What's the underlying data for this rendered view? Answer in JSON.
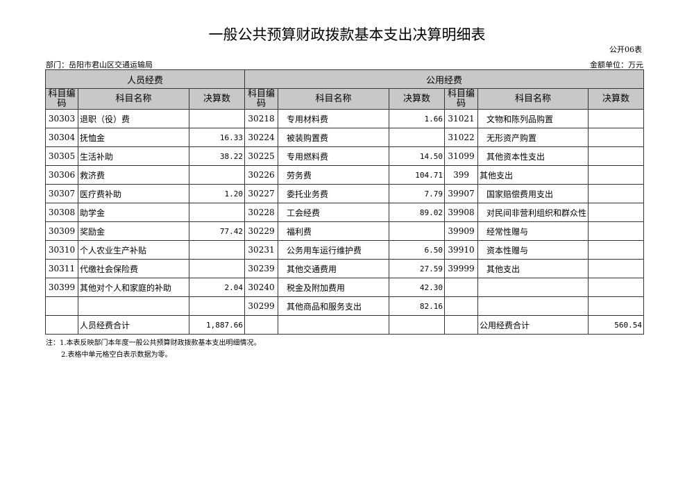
{
  "title": "一般公共预算财政拨款基本支出决算明细表",
  "form_no": "公开06表",
  "department": "部门：岳阳市君山区交通运输局",
  "unit": "金额单位：万元",
  "headers": {
    "personnel": "人员经费",
    "public": "公用经费",
    "code": "科目编码",
    "name": "科目名称",
    "amount": "决算数"
  },
  "rows": [
    [
      "30303",
      "退职（役）费",
      "",
      "30218",
      "专用材料费",
      "1.66",
      "31021",
      "文物和陈列品购置",
      ""
    ],
    [
      "30304",
      "抚恤金",
      "16.33",
      "30224",
      "被装购置费",
      "",
      "31022",
      "无形资产购置",
      ""
    ],
    [
      "30305",
      "生活补助",
      "38.22",
      "30225",
      "专用燃料费",
      "14.50",
      "31099",
      "其他资本性支出",
      ""
    ],
    [
      "30306",
      "救济费",
      "",
      "30226",
      "劳务费",
      "104.71",
      "399",
      "其他支出",
      ""
    ],
    [
      "30307",
      "医疗费补助",
      "1.20",
      "30227",
      "委托业务费",
      "7.79",
      "39907",
      "国家赔偿费用支出",
      ""
    ],
    [
      "30308",
      "助学金",
      "",
      "30228",
      "工会经费",
      "89.02",
      "39908",
      "对民间非营利组织和群众性自",
      ""
    ],
    [
      "30309",
      "奖励金",
      "77.42",
      "30229",
      "福利费",
      "",
      "39909",
      "经常性赠与",
      ""
    ],
    [
      "30310",
      "个人农业生产补贴",
      "",
      "30231",
      "公务用车运行维护费",
      "6.50",
      "39910",
      "资本性赠与",
      ""
    ],
    [
      "30311",
      "代缴社会保险费",
      "",
      "30239",
      "其他交通费用",
      "27.59",
      "39999",
      "其他支出",
      ""
    ],
    [
      "30399",
      "其他对个人和家庭的补助",
      "2.04",
      "30240",
      "税金及附加费用",
      "42.30",
      "",
      "",
      ""
    ],
    [
      "",
      "",
      "",
      "30299",
      "其他商品和服务支出",
      "82.16",
      "",
      "",
      ""
    ]
  ],
  "totals": {
    "personnel_label": "人员经费合计",
    "personnel_value": "1,887.66",
    "public_label": "公用经费合计",
    "public_value": "560.54"
  },
  "notes": [
    "注：1.本表反映部门本年度一般公共预算财政拨款基本支出明细情况。",
    "2.表格中单元格空白表示数据为零。"
  ]
}
